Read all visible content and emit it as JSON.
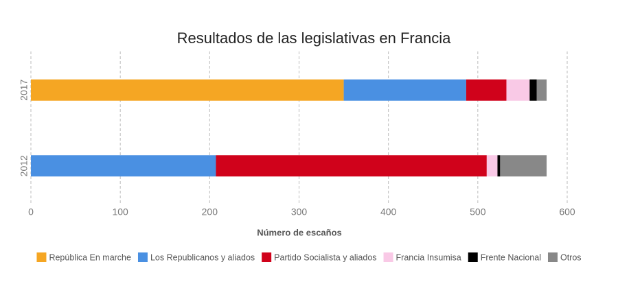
{
  "chart_data": {
    "type": "stacked-bar-horizontal",
    "title": "Resultados de las legislativas en Francia",
    "x_label": "Número de escaños",
    "categories": [
      "2017",
      "2012"
    ],
    "series": [
      {
        "name": "República En marche",
        "color": "#f5a623",
        "values": [
          350,
          0
        ]
      },
      {
        "name": "Los Republicanos y aliados",
        "color": "#4a90e2",
        "values": [
          137,
          207
        ]
      },
      {
        "name": "Partido Socialista y aliados",
        "color": "#d0021b",
        "values": [
          45,
          303
        ]
      },
      {
        "name": "Francia Insumisa",
        "color": "#f9c9e6",
        "values": [
          26,
          12
        ]
      },
      {
        "name": "Frente Nacional",
        "color": "#000000",
        "values": [
          8,
          3
        ]
      },
      {
        "name": "Otros",
        "color": "#888888",
        "values": [
          11,
          52
        ]
      }
    ],
    "xlim": [
      0,
      600
    ],
    "xticks": [
      0,
      100,
      200,
      300,
      400,
      500,
      600
    ],
    "grid": true
  }
}
